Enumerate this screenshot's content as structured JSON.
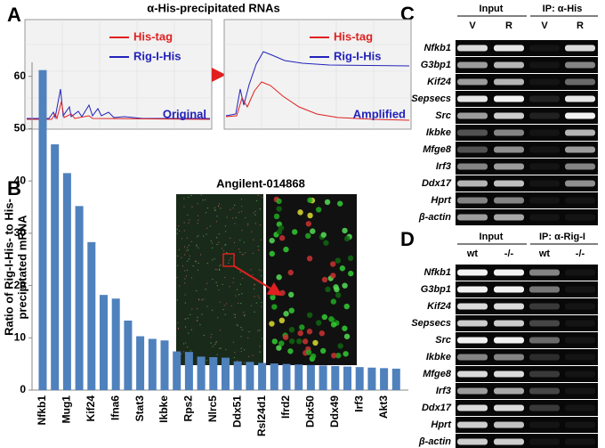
{
  "panel_labels": [
    "A",
    "B",
    "C",
    "D"
  ],
  "panel_a": {
    "title": "α-His-precipitated RNAs",
    "legend": [
      {
        "name": "His-tag",
        "color": "#e02020"
      },
      {
        "name": "Rig-I-His",
        "color": "#2222bb"
      }
    ],
    "plots": [
      "Original",
      "Amplified"
    ]
  },
  "chart_data": {
    "type": "bar",
    "inset_title": "Angilent-014868",
    "ylabel": [
      "Ratio of Rig-I-His- to His-",
      "precipitated mRNA"
    ],
    "categories": [
      "Nfkb1",
      null,
      "Mug1",
      null,
      "Kif24",
      null,
      "Ifna6",
      null,
      "Stat3",
      null,
      "Ikbke",
      null,
      "Rps2",
      null,
      "Nlrc5",
      null,
      "Ddx51",
      null,
      "Rsl24d1",
      null,
      "Ifrd2",
      null,
      "Ddx50",
      null,
      "Ddx49",
      null,
      "Irf3",
      null,
      "Akt3",
      null
    ],
    "values": [
      61.2,
      47,
      41.5,
      35.2,
      28.3,
      18.2,
      17.5,
      13.3,
      10.3,
      9.8,
      9.5,
      7.4,
      7.3,
      6.4,
      6.3,
      6.2,
      5.5,
      5.4,
      5.2,
      5.1,
      5.0,
      4.9,
      4.8,
      4.7,
      4.6,
      4.5,
      4.4,
      4.3,
      4.2,
      4.1
    ],
    "color": "#4f81bd",
    "ylim": [
      0,
      62
    ],
    "yticks": [
      0,
      10,
      20,
      30,
      40,
      50,
      60
    ]
  },
  "panel_c": {
    "groups": [
      "Input",
      "IP: α-His"
    ],
    "lanes": [
      "V",
      "R",
      "V",
      "R"
    ],
    "rows": [
      "Nfkb1",
      "G3bp1",
      "Kif24",
      "Sepsecs",
      "Src",
      "Ikbke",
      "Mfge8",
      "Irf3",
      "Ddx17",
      "Hprt",
      "β-actin"
    ]
  },
  "panel_d": {
    "groups": [
      "Input",
      "IP: α-Rig-I"
    ],
    "lanes": [
      "wt",
      "-/-",
      "wt",
      "-/-"
    ],
    "rows": [
      "Nfkb1",
      "G3bp1",
      "Kif24",
      "Sepsecs",
      "Src",
      "Ikbke",
      "Mfge8",
      "Irf3",
      "Ddx17",
      "Hprt",
      "β-actin"
    ]
  }
}
